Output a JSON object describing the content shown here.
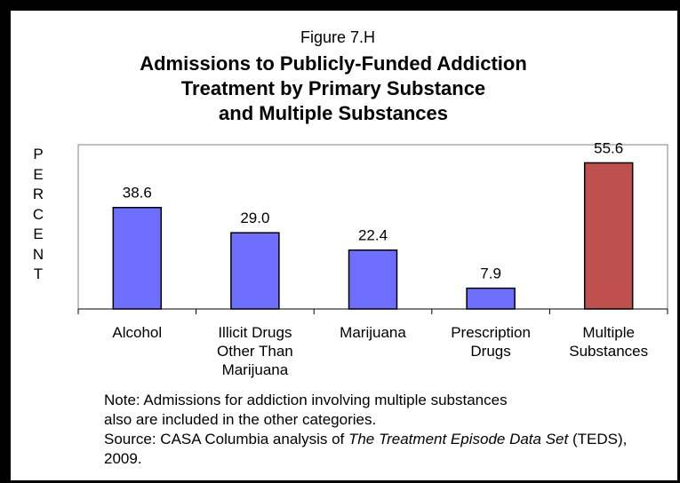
{
  "figure_label": "Figure 7.H",
  "ylabel": "PERCENT",
  "colors": {
    "bar": "#6f6fff",
    "highlight": "#c0504d",
    "outline": "#000000"
  },
  "chart_data": {
    "type": "bar",
    "title": "Admissions to Publicly-Funded Addiction Treatment by Primary Substance and Multiple Substances",
    "title_lines": [
      "Admissions to Publicly-Funded Addiction",
      "Treatment by Primary Substance",
      "and Multiple Substances"
    ],
    "ylabel": "PERCENT",
    "xlabel": "",
    "ylim": [
      0,
      62.5
    ],
    "grid": false,
    "categories": [
      "Alcohol",
      "Illicit Drugs Other Than Marijuana",
      "Marijuana",
      "Prescription Drugs",
      "Multiple Substances"
    ],
    "category_lines": [
      [
        "Alcohol"
      ],
      [
        "Illicit Drugs",
        "Other Than",
        "Marijuana"
      ],
      [
        "Marijuana"
      ],
      [
        "Prescription",
        "Drugs"
      ],
      [
        "Multiple",
        "Substances"
      ]
    ],
    "values": [
      38.6,
      29.0,
      22.4,
      7.9,
      55.6
    ],
    "value_labels": [
      "38.6",
      "29.0",
      "22.4",
      "7.9",
      "55.6"
    ],
    "highlight_index": 4
  },
  "note": {
    "line1": "Note: Admissions for addiction involving multiple substances",
    "line2": "also are included in the other categories.",
    "source_prefix": "Source: CASA Columbia analysis of ",
    "source_title": "The Treatment Episode Data Set",
    "source_suffix": " (TEDS), 2009."
  }
}
